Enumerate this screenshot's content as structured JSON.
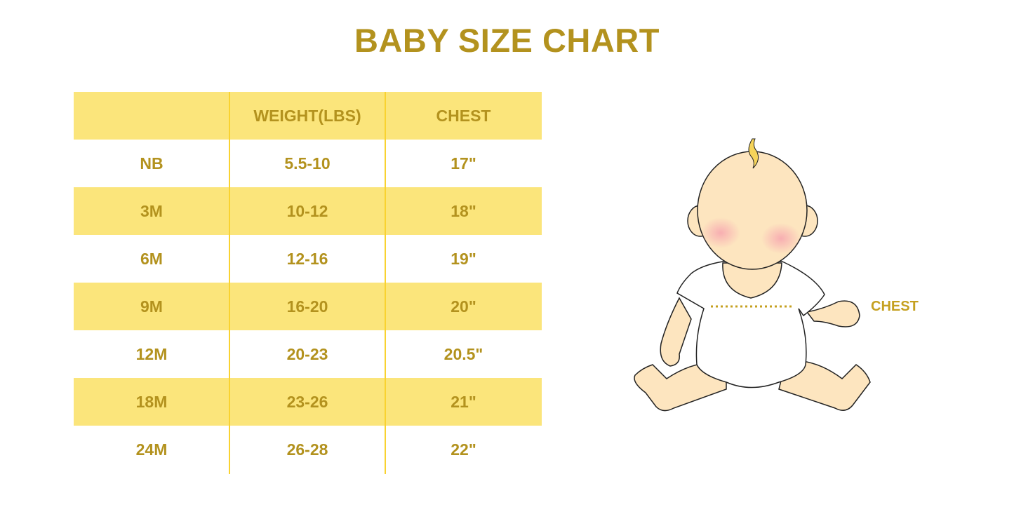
{
  "title": "BABY SIZE CHART",
  "table": {
    "headers": [
      "",
      "WEIGHT(LBS)",
      "CHEST"
    ],
    "rows": [
      [
        "NB",
        "5.5-10",
        "17\""
      ],
      [
        "3M",
        "10-12",
        "18\""
      ],
      [
        "6M",
        "12-16",
        "19\""
      ],
      [
        "9M",
        "16-20",
        "20\""
      ],
      [
        "12M",
        "20-23",
        "20.5\""
      ],
      [
        "18M",
        "23-26",
        "21\""
      ],
      [
        "24M",
        "26-28",
        "22\""
      ]
    ]
  },
  "illustration": {
    "chest_label": "CHEST"
  },
  "colors": {
    "text": "#B3921E",
    "band": "#FBE57B",
    "divider": "#F9D230",
    "skin": "#FDE5BF"
  }
}
